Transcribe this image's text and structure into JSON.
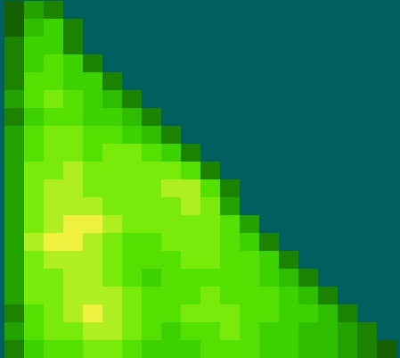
{
  "chart_data": {
    "type": "heatmap",
    "tick_labels": false,
    "zlim": [
      0,
      10
    ],
    "cells": [
      [
        2,
        4,
        3
      ],
      [
        2,
        5,
        6,
        3
      ],
      [
        3,
        6,
        6,
        3
      ],
      [
        3,
        6,
        7,
        6,
        3
      ],
      [
        3,
        7,
        7,
        6,
        6,
        3
      ],
      [
        4,
        7,
        8,
        7,
        6,
        5,
        3
      ],
      [
        3,
        6,
        7,
        7,
        6,
        6,
        5,
        3
      ],
      [
        4,
        7,
        8,
        8,
        7,
        7,
        6,
        5,
        3
      ],
      [
        4,
        7,
        8,
        8,
        7,
        8,
        8,
        7,
        6,
        3
      ],
      [
        4,
        8,
        8,
        9,
        8,
        8,
        8,
        8,
        8,
        7,
        3
      ],
      [
        4,
        8,
        9,
        9,
        8,
        8,
        8,
        8,
        9,
        9,
        7,
        3
      ],
      [
        4,
        8,
        9,
        9,
        9,
        8,
        8,
        8,
        8,
        9,
        8,
        4
      ],
      [
        4,
        8,
        9,
        10,
        10,
        9,
        8,
        8,
        8,
        8,
        8,
        7,
        4
      ],
      [
        4,
        9,
        10,
        10,
        9,
        8,
        7,
        7,
        8,
        8,
        8,
        7,
        6,
        3
      ],
      [
        4,
        8,
        9,
        9,
        9,
        8,
        7,
        7,
        7,
        8,
        8,
        7,
        7,
        6,
        3
      ],
      [
        4,
        8,
        8,
        9,
        9,
        8,
        7,
        6,
        7,
        7,
        7,
        7,
        7,
        6,
        5,
        3
      ],
      [
        4,
        8,
        8,
        9,
        9,
        9,
        8,
        7,
        7,
        7,
        8,
        7,
        7,
        7,
        6,
        5,
        3
      ],
      [
        3,
        7,
        8,
        9,
        10,
        9,
        8,
        7,
        7,
        8,
        8,
        8,
        7,
        7,
        6,
        6,
        5,
        3
      ],
      [
        4,
        7,
        8,
        8,
        9,
        9,
        8,
        7,
        6,
        7,
        7,
        8,
        7,
        6,
        6,
        5,
        5,
        4,
        3
      ],
      [
        3,
        6,
        7,
        7,
        8,
        8,
        7,
        6,
        6,
        6,
        7,
        7,
        7,
        6,
        6,
        5,
        5,
        4,
        3,
        2
      ]
    ]
  }
}
